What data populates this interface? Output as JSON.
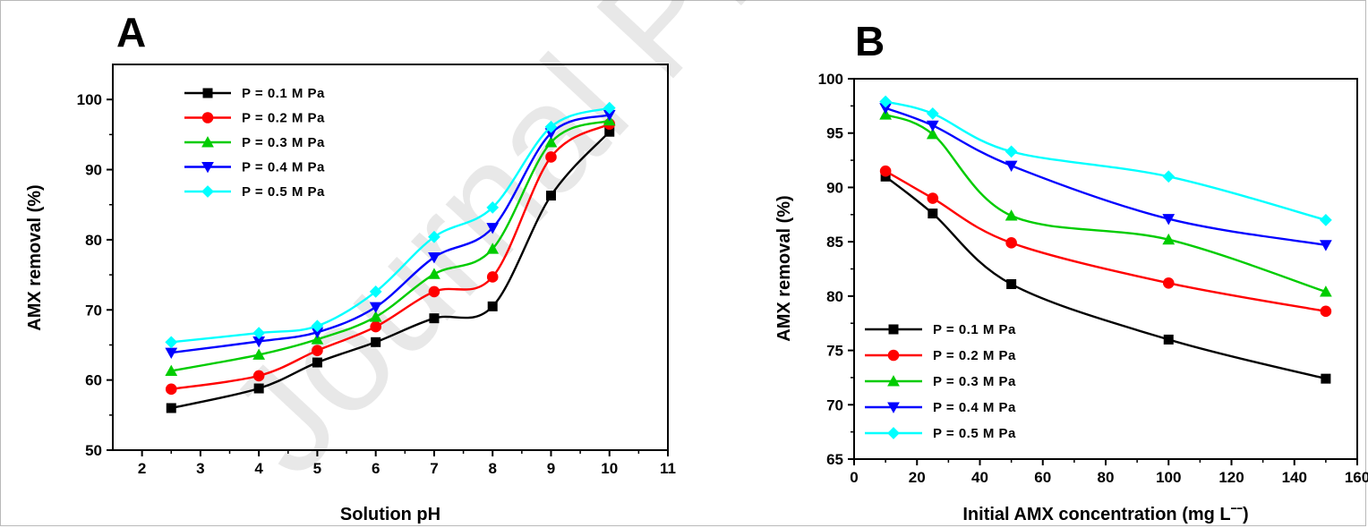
{
  "watermark": "Journal Pre-proof",
  "chart_data": [
    {
      "panel": "A",
      "type": "line",
      "xlabel": "Solution pH",
      "ylabel": "AMX removal (%)",
      "xlim": [
        1.5,
        11
      ],
      "ylim": [
        50,
        105
      ],
      "xticks": [
        2,
        3,
        4,
        5,
        6,
        7,
        8,
        9,
        10,
        11
      ],
      "yticks": [
        50,
        60,
        70,
        80,
        90,
        100
      ],
      "grid": false,
      "legend_position": "top-left",
      "x": [
        2.5,
        4,
        5,
        6,
        7,
        8,
        9,
        10
      ],
      "series": [
        {
          "name": "P = 0.1 M Pa",
          "color": "#000000",
          "marker": "square",
          "values": [
            56.0,
            58.8,
            62.5,
            65.4,
            68.8,
            70.5,
            86.3,
            95.4
          ]
        },
        {
          "name": "P = 0.2 M Pa",
          "color": "#ff0000",
          "marker": "circle",
          "values": [
            58.7,
            60.6,
            64.2,
            67.6,
            72.6,
            74.7,
            91.8,
            96.5
          ]
        },
        {
          "name": "P = 0.3 M Pa",
          "color": "#00cc00",
          "marker": "triangle-up",
          "values": [
            61.3,
            63.6,
            65.8,
            69.0,
            75.1,
            78.7,
            93.9,
            97.0
          ]
        },
        {
          "name": "P = 0.4 M Pa",
          "color": "#0000ff",
          "marker": "triangle-down",
          "values": [
            63.9,
            65.5,
            66.8,
            70.4,
            77.5,
            81.7,
            95.2,
            97.8
          ]
        },
        {
          "name": "P = 0.5 M Pa",
          "color": "#00ffff",
          "marker": "diamond",
          "values": [
            65.4,
            66.7,
            67.7,
            72.6,
            80.4,
            84.6,
            96.1,
            98.8
          ]
        }
      ]
    },
    {
      "panel": "B",
      "type": "line",
      "xlabel": "Initial AMX concentration (mg Lˉˉ)",
      "ylabel": "AMX removal (%)",
      "xlim": [
        0,
        160
      ],
      "ylim": [
        65,
        100
      ],
      "xticks": [
        0,
        20,
        40,
        60,
        80,
        100,
        120,
        140,
        160
      ],
      "yticks": [
        65,
        70,
        75,
        80,
        85,
        90,
        95,
        100
      ],
      "grid": false,
      "legend_position": "bottom-left",
      "x": [
        10,
        25,
        50,
        100,
        150
      ],
      "series": [
        {
          "name": "P = 0.1 M Pa",
          "color": "#000000",
          "marker": "square",
          "values": [
            91.0,
            87.6,
            81.1,
            76.0,
            72.4
          ]
        },
        {
          "name": "P = 0.2 M Pa",
          "color": "#ff0000",
          "marker": "circle",
          "values": [
            91.5,
            89.0,
            84.9,
            81.2,
            78.6
          ]
        },
        {
          "name": "P = 0.3 M Pa",
          "color": "#00cc00",
          "marker": "triangle-up",
          "values": [
            96.7,
            94.9,
            87.4,
            85.2,
            80.4
          ]
        },
        {
          "name": "P = 0.4 M Pa",
          "color": "#0000ff",
          "marker": "triangle-down",
          "values": [
            97.3,
            95.7,
            92.0,
            87.1,
            84.7
          ]
        },
        {
          "name": "P = 0.5 M Pa",
          "color": "#00ffff",
          "marker": "diamond",
          "values": [
            97.9,
            96.8,
            93.3,
            91.0,
            87.0
          ]
        }
      ]
    }
  ]
}
